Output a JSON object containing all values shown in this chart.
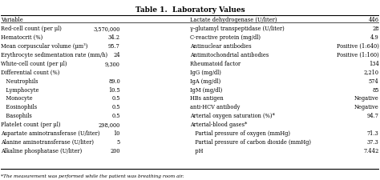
{
  "title": "Table 1.  Laboratory Values",
  "footnote": "*The measurement was performed while the patient was breathing room air.",
  "left_col": [
    [
      "Variable",
      ""
    ],
    [
      "Red-cell count (per μl)",
      "3,570,000"
    ],
    [
      "Hematocrit (%)",
      "34.2"
    ],
    [
      "Mean corpuscular volume (μm³)",
      "95.7"
    ],
    [
      "Erythrocyte sedimentation rate (mm/h)",
      "24"
    ],
    [
      "White-cell count (per μl)",
      "9,300"
    ],
    [
      "Differential count (%)",
      ""
    ],
    [
      "   Neutrophils",
      "89.0"
    ],
    [
      "   Lymphocyte",
      "10.5"
    ],
    [
      "   Monocyte",
      "0.5"
    ],
    [
      "   Eosinophils",
      "0.5"
    ],
    [
      "   Basophils",
      "0.5"
    ],
    [
      "Platelet count (per μl)",
      "298,000"
    ],
    [
      "Aspartate aminotransferase (U/liter)",
      "10"
    ],
    [
      "Alanine aminotransferase (U/liter)",
      "5"
    ],
    [
      "Alkaline phosphatase (U/liter)",
      "200"
    ]
  ],
  "right_col": [
    [
      "Lactate dehydrogenase (U/liter)",
      "446"
    ],
    [
      "γ-glutamyl transpeptidase (U/liter)",
      "28"
    ],
    [
      "C-reactive protein (mg/dl)",
      "4.9"
    ],
    [
      "Antinuclear antibodies",
      "Positive (1:640)"
    ],
    [
      "Antimitochondrial antibodies",
      "Positive (1:160)"
    ],
    [
      "Rheumatoid factor",
      "134"
    ],
    [
      "IgG (mg/dl)",
      "2,210"
    ],
    [
      "IgA (mg/dl)",
      "574"
    ],
    [
      "IgM (mg/dl)",
      "85"
    ],
    [
      "HBs antigen",
      "Negative"
    ],
    [
      "anti-HCV antibody",
      "Negative"
    ],
    [
      "Arterial oxygen saturation (%)*",
      "94.7"
    ],
    [
      "Arterial-blood gases*",
      ""
    ],
    [
      "   Partial pressure of oxygen (mmHg)",
      "71.3"
    ],
    [
      "   Partial pressure of carbon dioxide (mmHg)",
      "37.3"
    ],
    [
      "   pH",
      "7.442"
    ]
  ]
}
